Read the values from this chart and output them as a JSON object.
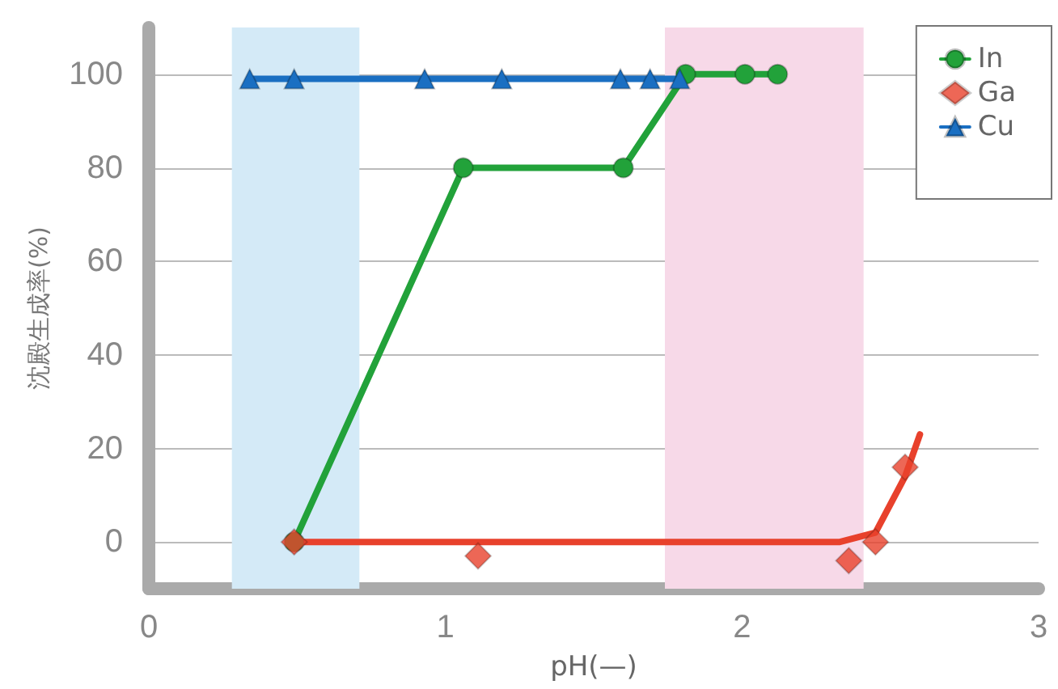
{
  "chart_data": {
    "type": "line",
    "xlabel": "pH(—)",
    "ylabel": "沈殿生成率(%)",
    "xlim": [
      0,
      3
    ],
    "xticks": [
      0,
      1,
      2,
      3
    ],
    "ylim": [
      -10,
      110
    ],
    "yticks": [
      0,
      20,
      40,
      60,
      80,
      100
    ],
    "grid": "y",
    "legend": "top right",
    "bands": [
      {
        "axis": "x",
        "from": 0.28,
        "to": 0.71,
        "color": "#d4eaf7"
      },
      {
        "axis": "x",
        "from": 1.74,
        "to": 2.41,
        "color": "#f7d9e8"
      }
    ],
    "series": [
      {
        "name": "In",
        "marker": "circle",
        "color": "#22a23a",
        "x": [
          0.49,
          1.06,
          1.6,
          1.81,
          2.01,
          2.12
        ],
        "values": [
          0,
          80,
          80,
          100,
          100,
          100
        ]
      },
      {
        "name": "Ga",
        "type": "scatter",
        "marker": "diamond",
        "color": "#e8412c",
        "x": [
          0.49,
          1.11,
          2.36,
          2.45,
          2.55
        ],
        "values": [
          0,
          -3,
          -4,
          0,
          16
        ]
      },
      {
        "type": "line",
        "marker": "none",
        "color": "#e8412c",
        "x": [
          0.49,
          2.33,
          2.45,
          2.55,
          2.6
        ],
        "values": [
          0,
          0,
          2,
          14,
          23
        ]
      },
      {
        "name": "Cu",
        "marker": "triangle",
        "color": "#1a6fc2",
        "x": [
          0.34,
          0.49,
          0.93,
          1.19,
          1.59,
          1.69,
          1.79
        ],
        "values": [
          99,
          99,
          99,
          99,
          99,
          99,
          99
        ]
      }
    ]
  }
}
